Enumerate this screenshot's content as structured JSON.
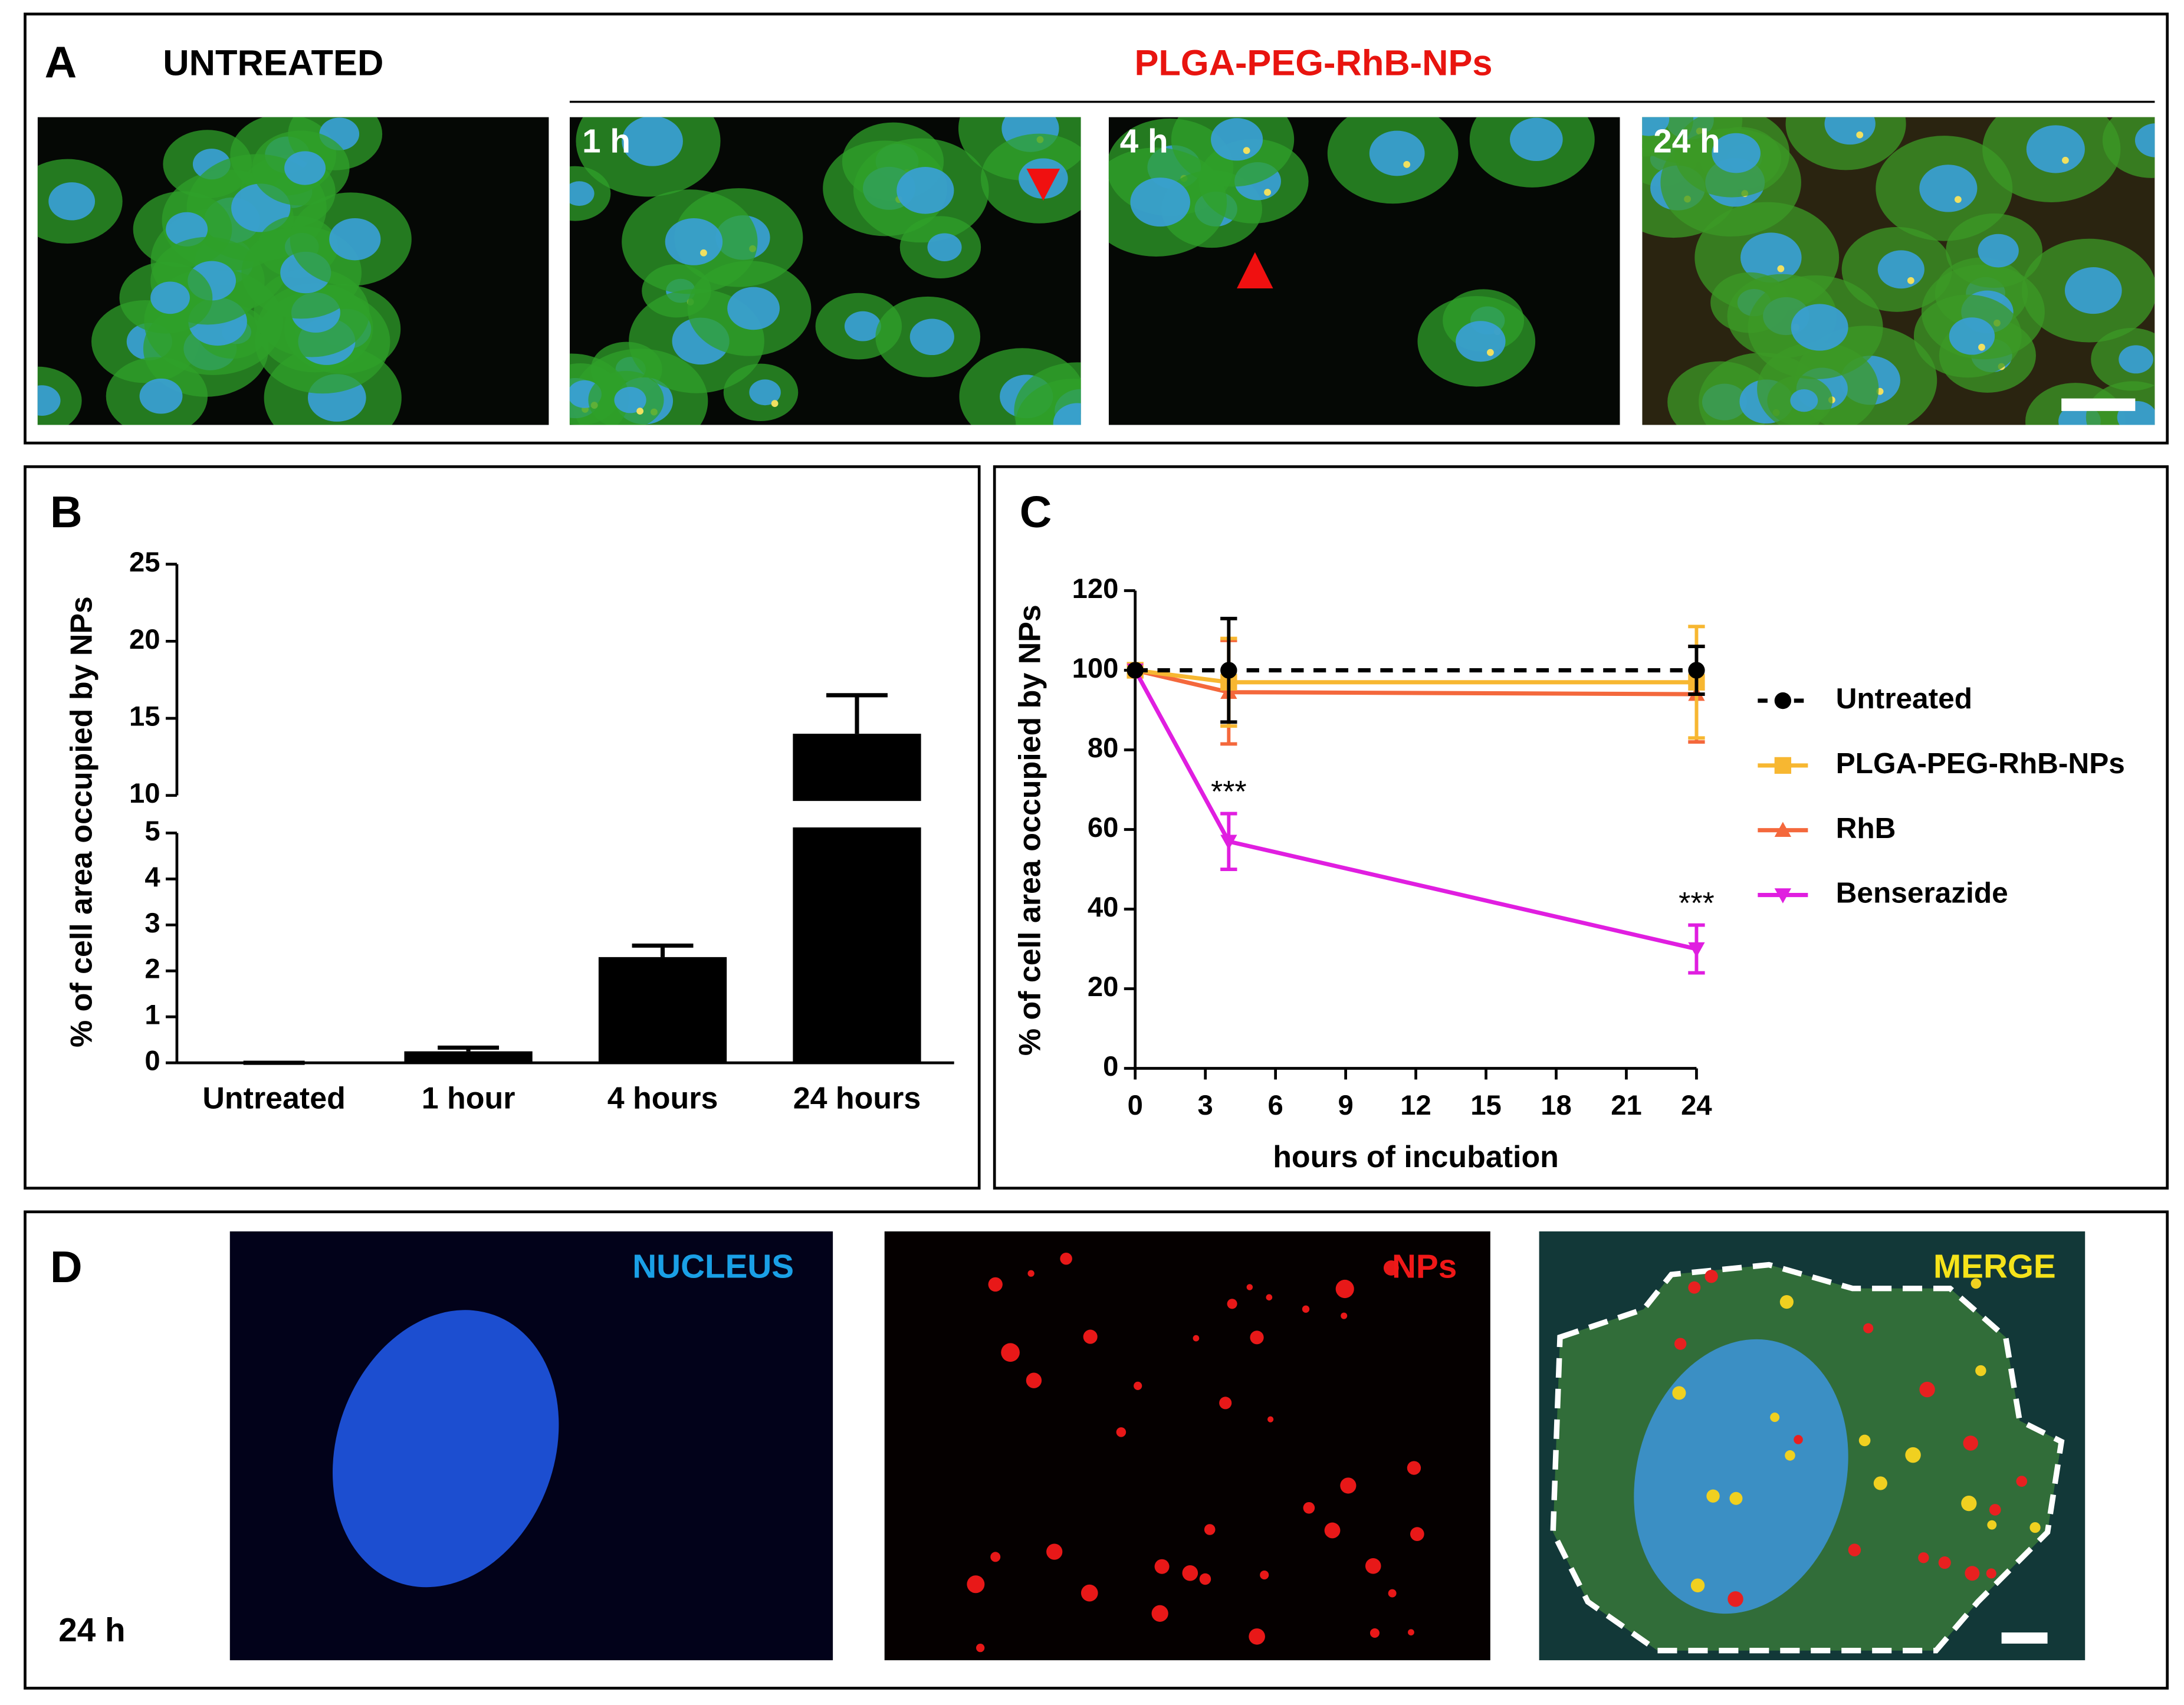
{
  "panel_a": {
    "label": "A",
    "untreated": "UNTREATED",
    "treatment": "PLGA-PEG-RhB-NPs",
    "times": [
      "1 h",
      "4 h",
      "24 h"
    ]
  },
  "panel_b": {
    "label": "B"
  },
  "panel_c": {
    "label": "C"
  },
  "panel_d": {
    "label": "D",
    "channels": [
      "NUCLEUS",
      "NPs",
      "MERGE"
    ],
    "time": "24 h"
  },
  "chart_data": [
    {
      "type": "bar",
      "y_label": "% of cell area occupied by NPs",
      "categories": [
        "Untreated",
        "1 hour",
        "4 hours",
        "24 hours"
      ],
      "values": [
        0,
        0.25,
        2.3,
        14
      ],
      "errors": [
        0,
        0.08,
        0.25,
        2.5
      ],
      "color": "#000000",
      "ylim": [
        0,
        25
      ],
      "ybreak": [
        5,
        10
      ],
      "yticks": [
        0,
        1,
        2,
        3,
        4,
        5,
        10,
        15,
        20,
        25
      ]
    },
    {
      "type": "line",
      "x_label": "hours of incubation",
      "y_label": "% of cell area occupied by NPs",
      "x": [
        0,
        4,
        24
      ],
      "series": [
        {
          "name": "Untreated",
          "color": "#000000",
          "marker": "circle",
          "dashed": true,
          "values": [
            100,
            100,
            100
          ],
          "errors": [
            0,
            13,
            6
          ]
        },
        {
          "name": "PLGA-PEG-RhB-NPs",
          "color": "#f7b731",
          "marker": "square",
          "dashed": false,
          "values": [
            100,
            97,
            97
          ],
          "errors": [
            0,
            11,
            14
          ]
        },
        {
          "name": "RhB",
          "color": "#f4683c",
          "marker": "triangle-up",
          "dashed": false,
          "values": [
            100,
            94.5,
            94
          ],
          "errors": [
            0,
            13,
            12
          ]
        },
        {
          "name": "Benserazide",
          "color": "#e01ee0",
          "marker": "triangle-down",
          "dashed": false,
          "values": [
            100,
            57,
            30
          ],
          "errors": [
            0,
            7,
            6
          ]
        }
      ],
      "annotations": [
        "***",
        "***"
      ],
      "xlim": [
        0,
        24
      ],
      "xticks": [
        0,
        3,
        6,
        9,
        12,
        15,
        18,
        21,
        24
      ],
      "ylim": [
        0,
        120
      ],
      "yticks": [
        0,
        20,
        40,
        60,
        80,
        100,
        120
      ]
    }
  ]
}
